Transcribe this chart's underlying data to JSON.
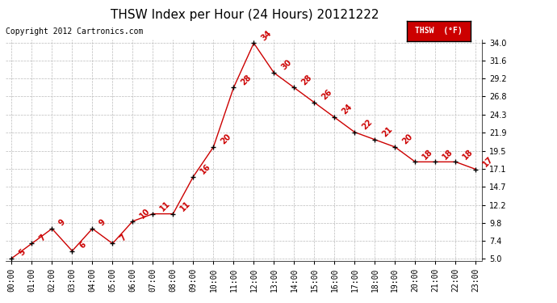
{
  "title": "THSW Index per Hour (24 Hours) 20121222",
  "copyright": "Copyright 2012 Cartronics.com",
  "legend_label": "THSW  (°F)",
  "hours": [
    "00:00",
    "01:00",
    "02:00",
    "03:00",
    "04:00",
    "05:00",
    "06:00",
    "07:00",
    "08:00",
    "09:00",
    "10:00",
    "11:00",
    "12:00",
    "13:00",
    "14:00",
    "15:00",
    "16:00",
    "17:00",
    "18:00",
    "19:00",
    "20:00",
    "21:00",
    "22:00",
    "23:00"
  ],
  "values": [
    5,
    7,
    9,
    6,
    9,
    7,
    10,
    11,
    11,
    16,
    20,
    28,
    34,
    30,
    28,
    26,
    24,
    22,
    21,
    20,
    18,
    18,
    18,
    17
  ],
  "ylim_min": 5.0,
  "ylim_max": 34.0,
  "ytick_vals": [
    5.0,
    7.4,
    9.8,
    12.2,
    14.7,
    17.1,
    19.5,
    21.9,
    24.3,
    26.8,
    29.2,
    31.6,
    34.0
  ],
  "ytick_labels": [
    "5.0",
    "7.4",
    "9.8",
    "12.2",
    "14.7",
    "17.1",
    "19.5",
    "21.9",
    "24.3",
    "26.8",
    "29.2",
    "31.6",
    "34.0"
  ],
  "line_color": "#cc0000",
  "marker_color": "#000000",
  "grid_color": "#bbbbbb",
  "background_color": "#ffffff",
  "legend_bg": "#cc0000",
  "legend_text_color": "#ffffff",
  "title_fontsize": 11,
  "tick_fontsize": 7,
  "annotation_fontsize": 7,
  "copyright_fontsize": 7
}
